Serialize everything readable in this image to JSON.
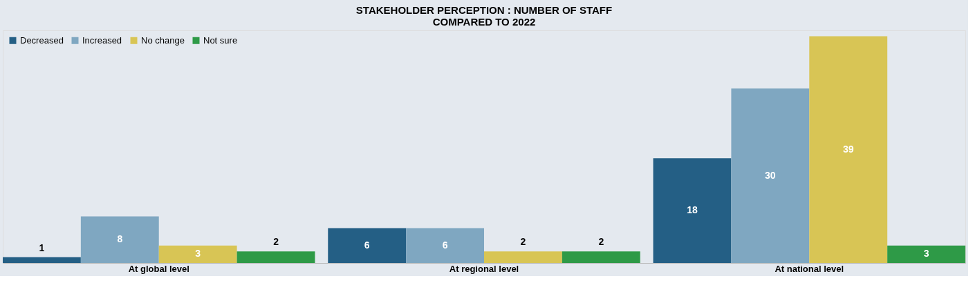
{
  "chart_data": {
    "type": "bar",
    "title": "STAKEHOLDER PERCEPTION : NUMBER OF STAFF\nCOMPARED TO 2022",
    "categories": [
      "At global level",
      "At regional level",
      "At national level"
    ],
    "series": [
      {
        "name": "Decreased",
        "color": "#245f85",
        "values": [
          1,
          6,
          18
        ]
      },
      {
        "name": "Increased",
        "color": "#7fa7c1",
        "values": [
          8,
          6,
          30
        ]
      },
      {
        "name": "No change",
        "color": "#d8c555",
        "values": [
          3,
          2,
          39
        ]
      },
      {
        "name": "Not sure",
        "color": "#2e9a47",
        "values": [
          2,
          2,
          3
        ]
      }
    ],
    "data_labels": true,
    "legend": "top left",
    "grid": false
  }
}
